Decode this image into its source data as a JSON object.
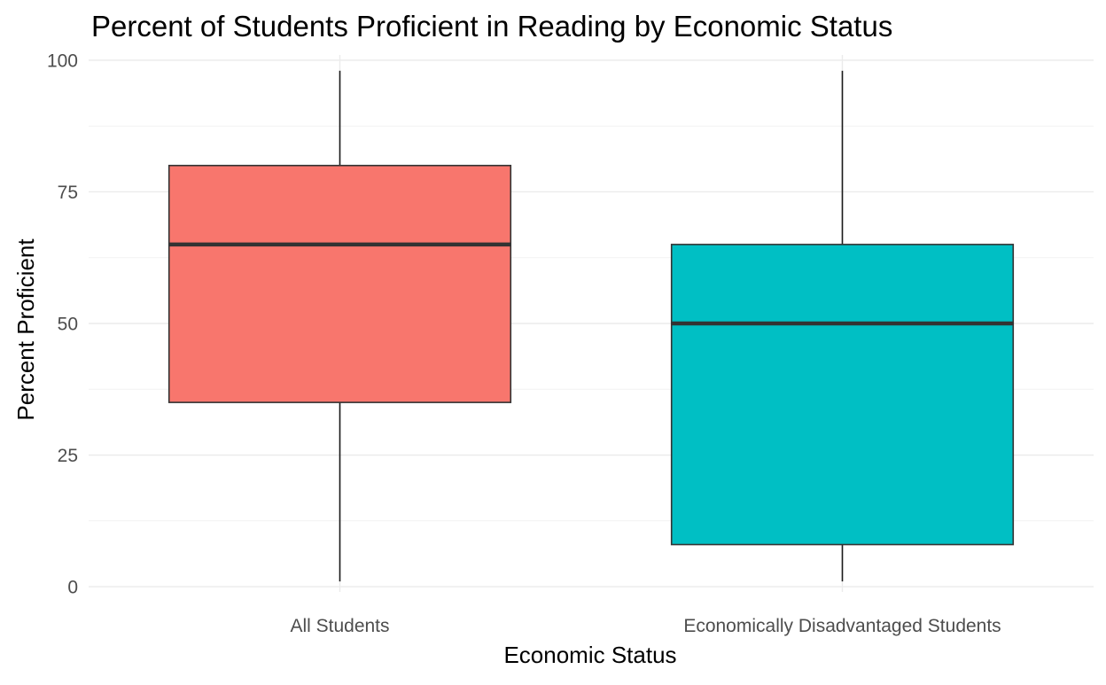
{
  "chart_data": {
    "type": "boxplot",
    "title": "Percent of Students Proficient in Reading by Economic Status",
    "xlabel": "Economic Status",
    "ylabel": "Percent Proficient",
    "ylim": [
      -1,
      101
    ],
    "y_ticks": [
      0,
      25,
      50,
      75,
      100
    ],
    "grid": true,
    "legend": "none",
    "categories": [
      "All Students",
      "Economically Disadvantaged Students"
    ],
    "boxes": [
      {
        "category": "All Students",
        "min": 1,
        "q1": 35,
        "median": 65,
        "q3": 80,
        "max": 98,
        "color": "#F8766D"
      },
      {
        "category": "Economically Disadvantaged Students",
        "min": 1,
        "q1": 8,
        "median": 50,
        "q3": 65,
        "max": 98,
        "color": "#00BFC4"
      }
    ]
  }
}
